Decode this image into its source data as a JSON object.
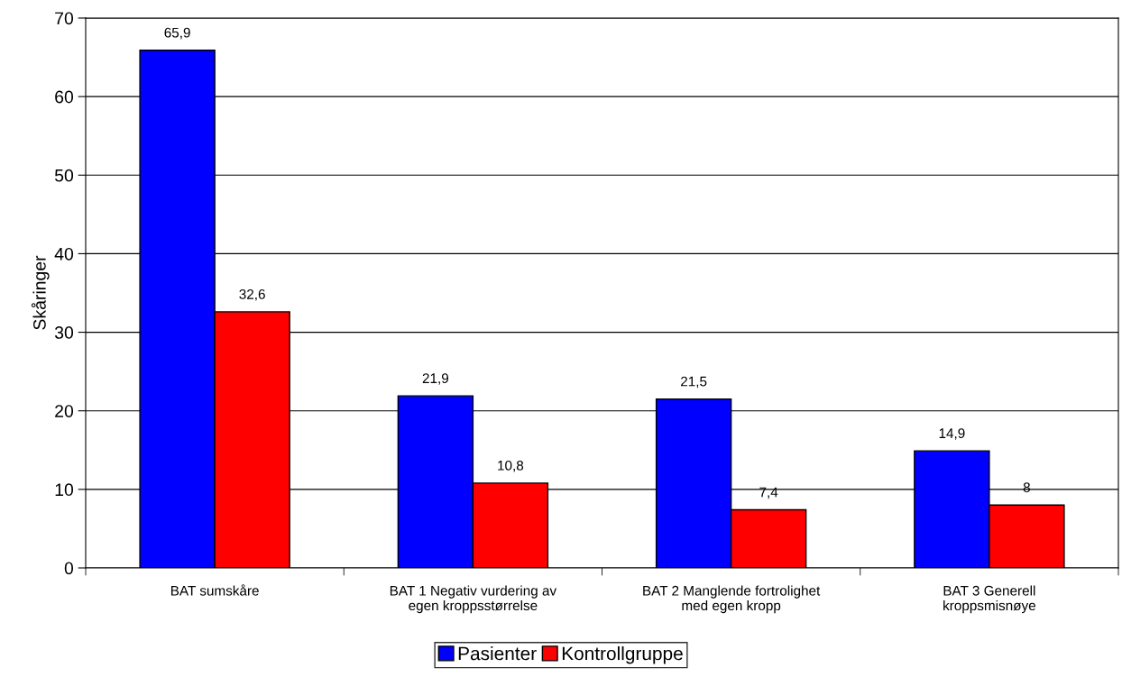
{
  "chart_data": {
    "type": "bar",
    "categories": [
      "BAT sumskåre",
      "BAT 1 Negativ vurdering av\negen kroppsstørrelse",
      "BAT 2 Manglende fortrolighet\nmed egen kropp",
      "BAT 3 Generell\nkroppsmisnøye"
    ],
    "series": [
      {
        "name": "Pasienter",
        "color": "#0000ff",
        "values": [
          65.9,
          21.9,
          21.5,
          14.9
        ],
        "value_labels": [
          "65,9",
          "21,9",
          "21,5",
          "14,9"
        ]
      },
      {
        "name": "Kontrollgruppe",
        "color": "#ff0000",
        "values": [
          32.6,
          10.8,
          7.4,
          8
        ],
        "value_labels": [
          "32,6",
          "10,8",
          "7,4",
          "8"
        ]
      }
    ],
    "ylabel": "Skåringer",
    "ylim": [
      0,
      70
    ],
    "yticks": [
      0,
      10,
      20,
      30,
      40,
      50,
      60,
      70
    ],
    "grid": "y",
    "legend": "bottom"
  }
}
